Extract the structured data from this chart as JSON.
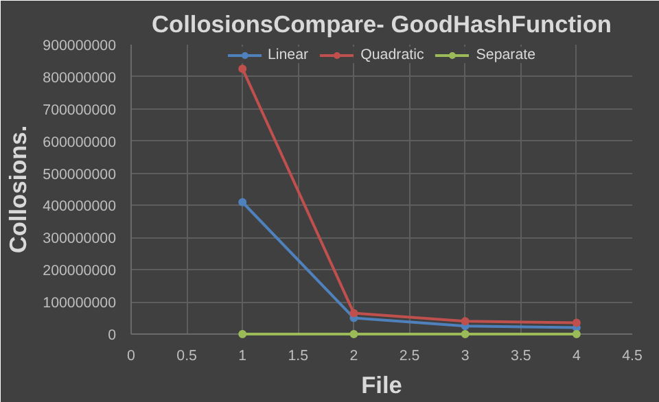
{
  "chart_data": {
    "type": "line",
    "title": "CollosionsCompare- GoodHashFunction",
    "xlabel": "File",
    "ylabel": "Collosions.",
    "x": [
      1,
      2,
      3,
      4
    ],
    "series": [
      {
        "name": "Linear",
        "color": "#4f81bd",
        "values": [
          410000000,
          50000000,
          25000000,
          20000000
        ]
      },
      {
        "name": "Quadratic",
        "color": "#c0504d",
        "values": [
          825000000,
          65000000,
          40000000,
          35000000
        ]
      },
      {
        "name": "Separate",
        "color": "#9bbb59",
        "values": [
          0,
          0,
          0,
          0
        ]
      }
    ],
    "xlim": [
      0,
      4.5
    ],
    "xticks": [
      0,
      0.5,
      1,
      1.5,
      2,
      2.5,
      3,
      3.5,
      4,
      4.5
    ],
    "ylim": [
      0,
      900000000
    ],
    "yticks": [
      0,
      100000000,
      200000000,
      300000000,
      400000000,
      500000000,
      600000000,
      700000000,
      800000000,
      900000000
    ],
    "grid": true,
    "legend": "top",
    "marker": "circle",
    "line_style": "solid"
  }
}
